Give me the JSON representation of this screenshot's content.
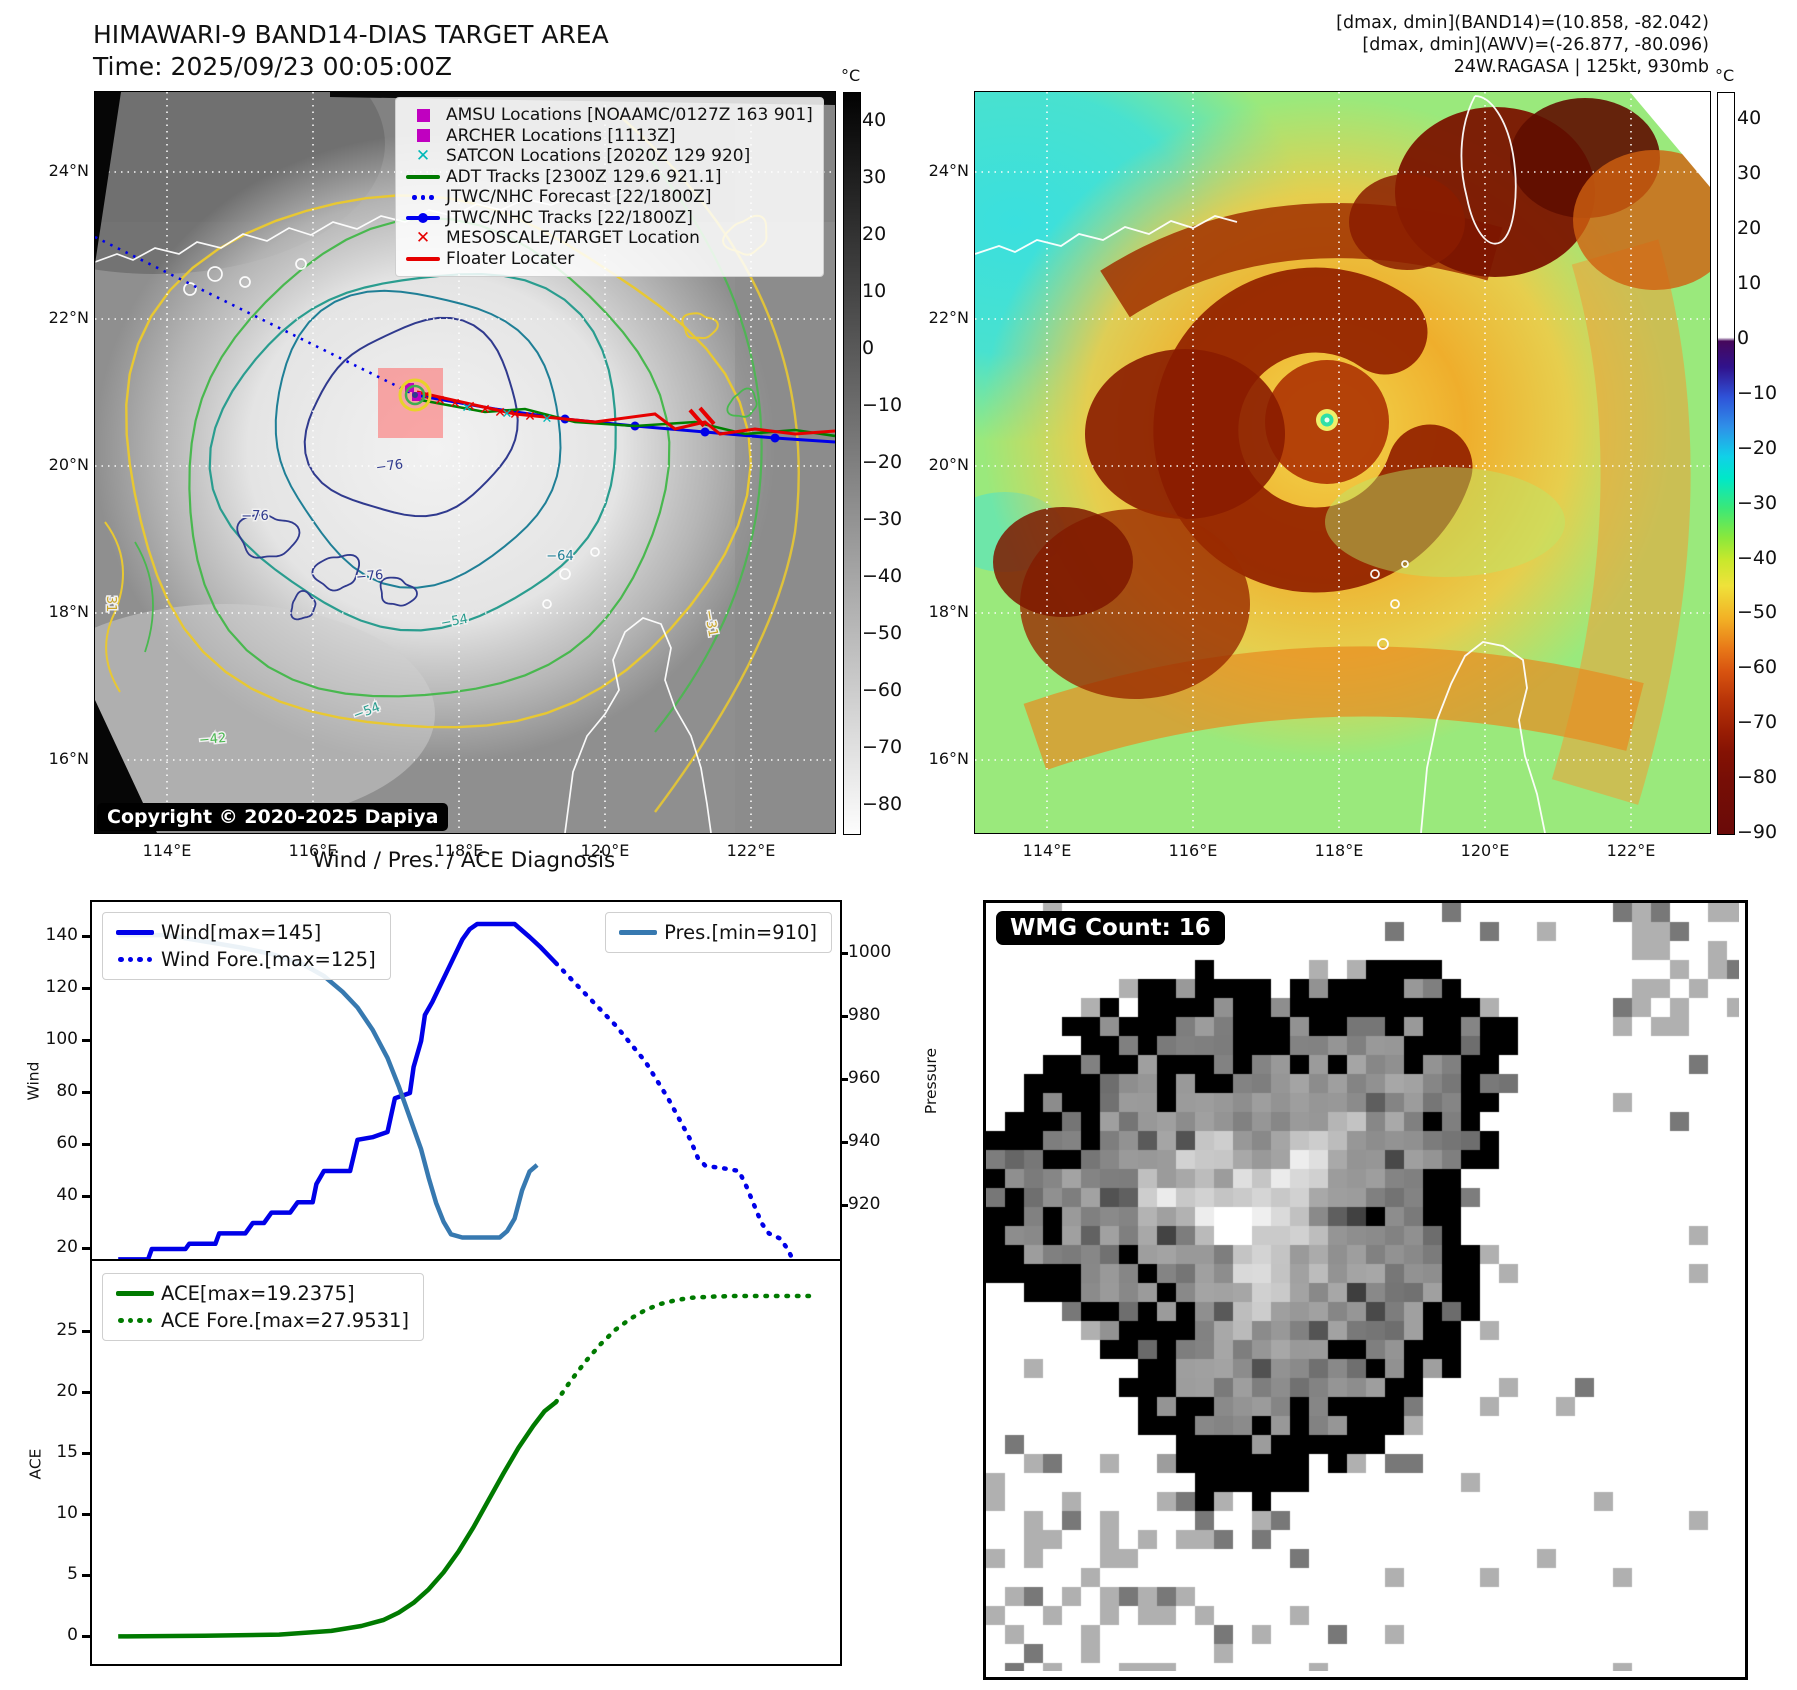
{
  "left_map": {
    "title": "HIMAWARI-9 BAND14-DIAS TARGET AREA",
    "subtitle": "Time: 2025/09/23 00:05:00Z",
    "copyright": "Copyright © 2020-2025 Dapiya",
    "lat_ticks": [
      "24°N",
      "22°N",
      "20°N",
      "18°N",
      "16°N"
    ],
    "lon_ticks": [
      "114°E",
      "116°E",
      "118°E",
      "120°E",
      "122°E"
    ],
    "colorbar": {
      "unit": "°C",
      "vmax": 45,
      "vmin": -85,
      "ticks": [
        "40",
        "30",
        "20",
        "10",
        "0",
        "−10",
        "−20",
        "−30",
        "−40",
        "−50",
        "−60",
        "−70",
        "−80"
      ]
    },
    "legend": [
      {
        "label": "AMSU Locations [NOAAMC/0127Z 163 901]",
        "marker": "square",
        "color": "#c000c0"
      },
      {
        "label": "ARCHER Locations [1113Z]",
        "marker": "square",
        "color": "#c000c0"
      },
      {
        "label": "SATCON Locations [2020Z 129 920]",
        "marker": "x",
        "color": "#00b8b8"
      },
      {
        "label": "ADT Tracks [2300Z 129.6 921.1]",
        "marker": "line",
        "color": "#007a00"
      },
      {
        "label": "JTWC/NHC Forecast [22/1800Z]",
        "marker": "dotted",
        "color": "#0000f0"
      },
      {
        "label": "JTWC/NHC Tracks [22/1800Z]",
        "marker": "line-dot",
        "color": "#0000f0"
      },
      {
        "label": "MESOSCALE/TARGET Location",
        "marker": "x",
        "color": "#e60000"
      },
      {
        "label": "Floater Locater",
        "marker": "line",
        "color": "#e60000"
      }
    ],
    "contour_labels": [
      "−76",
      "−76",
      "−76",
      "−64",
      "−54",
      "−54",
      "−42",
      "−31",
      "31"
    ]
  },
  "right_map": {
    "header_lines": [
      "[dmax, dmin](BAND14)=(10.858, -82.042)",
      "[dmax, dmin](AWV)=(-26.877, -80.096)",
      "24W.RAGASA | 125kt, 930mb"
    ],
    "lat_ticks": [
      "24°N",
      "22°N",
      "20°N",
      "18°N",
      "16°N"
    ],
    "lon_ticks": [
      "114°E",
      "116°E",
      "118°E",
      "120°E",
      "122°E"
    ],
    "colorbar": {
      "unit": "°C",
      "vmax": 45,
      "vmin": -90,
      "ticks": [
        "40",
        "30",
        "20",
        "10",
        "0",
        "−10",
        "−20",
        "−30",
        "−40",
        "−50",
        "−60",
        "−70",
        "−80",
        "−90"
      ]
    }
  },
  "diagnosis": {
    "title": "Wind / Pres. / ACE Diagnosis",
    "wind_label": "Wind",
    "pressure_label": "Pressure",
    "ace_label": "ACE",
    "wind_ticks": [
      140,
      120,
      100,
      80,
      60,
      40,
      20
    ],
    "pressure_ticks": [
      1000,
      980,
      960,
      940,
      920
    ],
    "ace_ticks": [
      25,
      20,
      15,
      10,
      5,
      0
    ],
    "legend_wind": [
      {
        "label": "Wind[max=145]",
        "style": "solid",
        "color": "#0000e8"
      },
      {
        "label": "Wind Fore.[max=125]",
        "style": "dotted",
        "color": "#0000e8"
      }
    ],
    "legend_pres": [
      {
        "label": "Pres.[min=910]",
        "style": "solid",
        "color": "#3779b0"
      }
    ],
    "legend_ace": [
      {
        "label": "ACE[max=19.2375]",
        "style": "solid",
        "color": "#007a00"
      },
      {
        "label": "ACE Fore.[max=27.9531]",
        "style": "dotted",
        "color": "#007a00"
      }
    ]
  },
  "wmg": {
    "label": "WMG Count: 16"
  },
  "chart_data": [
    {
      "type": "line",
      "title": "Wind / Pres. / ACE Diagnosis (top panel)",
      "xlabel": "time (unlabeled)",
      "ylabel": "Wind",
      "y2label": "Pressure",
      "ylim": [
        15,
        153
      ],
      "y2lim": [
        902,
        1016
      ],
      "grid": false,
      "legend_position": "upper left / upper right",
      "series": [
        {
          "name": "Wind[max=145]",
          "axis": "wind",
          "style": "solid",
          "color": "#0000e8",
          "points": [
            [
              0.035,
              16
            ],
            [
              0.075,
              16
            ],
            [
              0.08,
              20
            ],
            [
              0.125,
              20
            ],
            [
              0.13,
              22
            ],
            [
              0.165,
              22
            ],
            [
              0.17,
              26
            ],
            [
              0.205,
              26
            ],
            [
              0.215,
              30
            ],
            [
              0.23,
              30
            ],
            [
              0.24,
              34
            ],
            [
              0.265,
              34
            ],
            [
              0.275,
              38
            ],
            [
              0.295,
              38
            ],
            [
              0.3,
              45
            ],
            [
              0.31,
              50
            ],
            [
              0.345,
              50
            ],
            [
              0.355,
              62
            ],
            [
              0.375,
              63
            ],
            [
              0.395,
              65
            ],
            [
              0.405,
              78
            ],
            [
              0.425,
              80
            ],
            [
              0.43,
              90
            ],
            [
              0.44,
              100
            ],
            [
              0.445,
              110
            ],
            [
              0.455,
              115
            ],
            [
              0.465,
              121
            ],
            [
              0.475,
              127
            ],
            [
              0.485,
              133
            ],
            [
              0.495,
              139
            ],
            [
              0.505,
              143
            ],
            [
              0.515,
              145
            ],
            [
              0.565,
              145
            ],
            [
              0.585,
              140
            ],
            [
              0.6,
              136
            ],
            [
              0.62,
              130
            ]
          ]
        },
        {
          "name": "Wind Fore.[max=125]",
          "axis": "wind",
          "style": "dotted",
          "color": "#0000e8",
          "points": [
            [
              0.62,
              130
            ],
            [
              0.64,
              124
            ],
            [
              0.66,
              118
            ],
            [
              0.68,
              112
            ],
            [
              0.7,
              106
            ],
            [
              0.72,
              99
            ],
            [
              0.74,
              92
            ],
            [
              0.755,
              85
            ],
            [
              0.77,
              78
            ],
            [
              0.785,
              70
            ],
            [
              0.8,
              62
            ],
            [
              0.81,
              55
            ],
            [
              0.82,
              52
            ],
            [
              0.845,
              51
            ],
            [
              0.865,
              50
            ],
            [
              0.875,
              44
            ],
            [
              0.885,
              37
            ],
            [
              0.895,
              30
            ],
            [
              0.905,
              26
            ],
            [
              0.92,
              24
            ],
            [
              0.93,
              20
            ],
            [
              0.935,
              17
            ]
          ]
        },
        {
          "name": "Pres.[min=910]",
          "axis": "pressure",
          "style": "solid",
          "color": "#3779b0",
          "points": [
            [
              0.035,
              1006
            ],
            [
              0.1,
              1006
            ],
            [
              0.15,
              1004
            ],
            [
              0.2,
              1002
            ],
            [
              0.24,
              1000
            ],
            [
              0.28,
              997
            ],
            [
              0.31,
              993
            ],
            [
              0.335,
              988
            ],
            [
              0.355,
              983
            ],
            [
              0.375,
              976
            ],
            [
              0.395,
              967
            ],
            [
              0.41,
              958
            ],
            [
              0.425,
              948
            ],
            [
              0.44,
              938
            ],
            [
              0.45,
              929
            ],
            [
              0.46,
              921
            ],
            [
              0.47,
              915
            ],
            [
              0.48,
              911
            ],
            [
              0.495,
              910
            ],
            [
              0.545,
              910
            ],
            [
              0.555,
              912
            ],
            [
              0.565,
              916
            ],
            [
              0.575,
              925
            ],
            [
              0.585,
              931
            ],
            [
              0.595,
              933
            ]
          ]
        }
      ]
    },
    {
      "type": "line",
      "title": "ACE (bottom panel)",
      "xlabel": "time (unlabeled)",
      "ylabel": "ACE",
      "ylim": [
        -0.8,
        30.5
      ],
      "grid": false,
      "legend_position": "upper left",
      "series": [
        {
          "name": "ACE[max=19.2375]",
          "axis": "ace",
          "style": "solid",
          "color": "#007a00",
          "points": [
            [
              0.035,
              0.05
            ],
            [
              0.15,
              0.1
            ],
            [
              0.25,
              0.2
            ],
            [
              0.32,
              0.5
            ],
            [
              0.36,
              0.9
            ],
            [
              0.39,
              1.4
            ],
            [
              0.41,
              2.0
            ],
            [
              0.43,
              2.8
            ],
            [
              0.45,
              3.9
            ],
            [
              0.47,
              5.3
            ],
            [
              0.49,
              7.0
            ],
            [
              0.51,
              9.0
            ],
            [
              0.53,
              11.2
            ],
            [
              0.55,
              13.4
            ],
            [
              0.57,
              15.5
            ],
            [
              0.59,
              17.3
            ],
            [
              0.605,
              18.5
            ],
            [
              0.62,
              19.24
            ]
          ]
        },
        {
          "name": "ACE Fore.[max=27.9531]",
          "axis": "ace",
          "style": "dotted",
          "color": "#007a00",
          "points": [
            [
              0.62,
              19.24
            ],
            [
              0.64,
              21.0
            ],
            [
              0.66,
              22.6
            ],
            [
              0.68,
              24.0
            ],
            [
              0.7,
              25.2
            ],
            [
              0.72,
              26.1
            ],
            [
              0.74,
              26.8
            ],
            [
              0.76,
              27.3
            ],
            [
              0.78,
              27.6
            ],
            [
              0.8,
              27.8
            ],
            [
              0.83,
              27.9
            ],
            [
              0.86,
              27.95
            ],
            [
              0.97,
              27.95
            ]
          ]
        }
      ]
    }
  ]
}
